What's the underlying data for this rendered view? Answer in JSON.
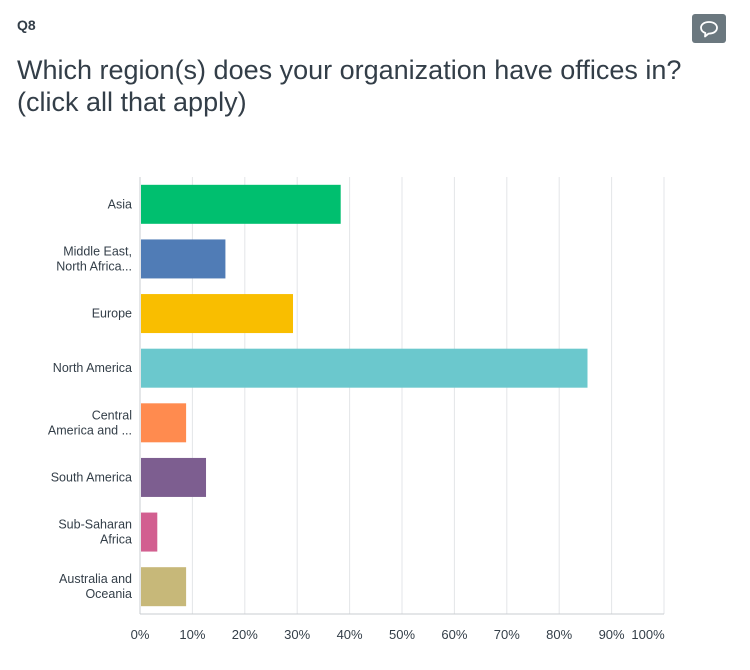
{
  "question": {
    "number": "Q8",
    "title": "Which region(s) does your organization have offices in? (click all that apply)"
  },
  "comment_button": {
    "icon": "speech-bubble-icon"
  },
  "chart_data": {
    "type": "bar",
    "orientation": "horizontal",
    "categories": [
      [
        "Asia"
      ],
      [
        "Middle East,",
        "North Africa..."
      ],
      [
        "Europe"
      ],
      [
        "North America"
      ],
      [
        "Central",
        "America and ..."
      ],
      [
        "South America"
      ],
      [
        "Sub-Saharan",
        "Africa"
      ],
      [
        "Australia and",
        "Oceania"
      ]
    ],
    "values": [
      38.3,
      16.3,
      29.2,
      85.4,
      8.8,
      12.6,
      3.3,
      8.8
    ],
    "colors": [
      "#00bf6f",
      "#507cb6",
      "#f9be00",
      "#6bc8cd",
      "#ff8b4f",
      "#7d5e90",
      "#d25f90",
      "#c7b879"
    ],
    "xlim": [
      0,
      100
    ],
    "xticks": [
      "0%",
      "10%",
      "20%",
      "30%",
      "40%",
      "50%",
      "60%",
      "70%",
      "80%",
      "90%",
      "100%"
    ],
    "grid": true
  }
}
